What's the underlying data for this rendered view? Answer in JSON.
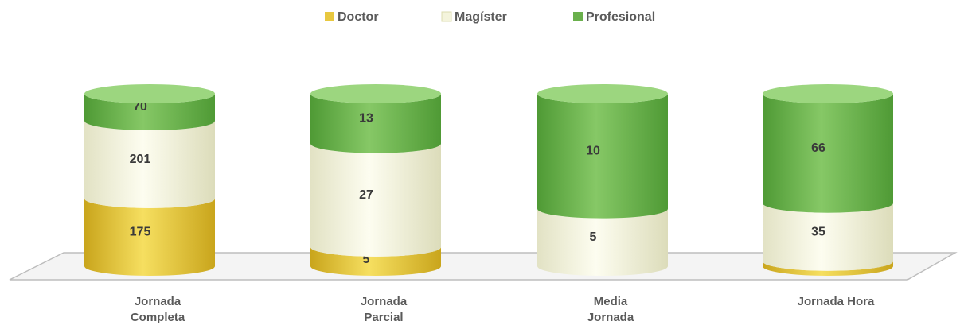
{
  "chart_data": {
    "type": "stacked-cylinder",
    "categories": [
      "Jornada\nCompleta",
      "Jornada\nParcial",
      "Media\nJornada",
      "Jornada Hora"
    ],
    "series": [
      {
        "name": "Doctor",
        "color": "#e8c840",
        "values": [
          175,
          5,
          null,
          3
        ]
      },
      {
        "name": "Magíster",
        "color": "#f4f4dc",
        "values": [
          201,
          27,
          5,
          35
        ]
      },
      {
        "name": "Profesional",
        "color": "#6ab04c",
        "values": [
          70,
          13,
          10,
          66
        ]
      }
    ],
    "legend": "top"
  }
}
